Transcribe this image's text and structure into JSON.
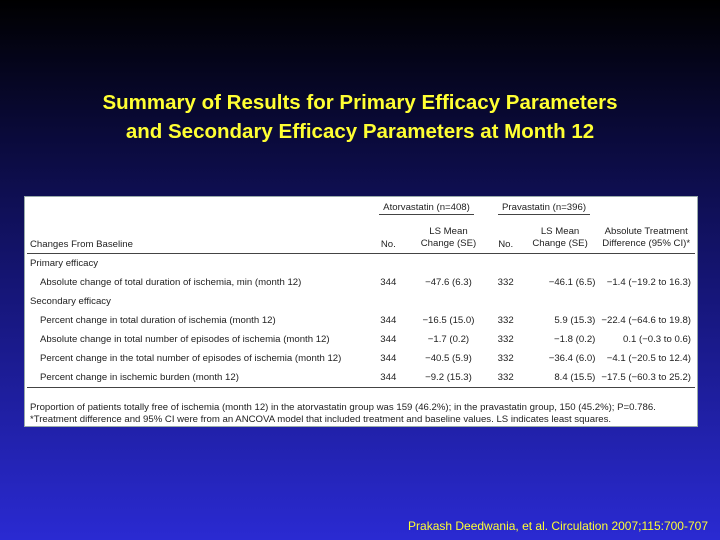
{
  "title": {
    "line1": "Summary of Results for Primary Efficacy Parameters",
    "line2": "and Secondary Efficacy Parameters at Month 12"
  },
  "table": {
    "group_headers": [
      "Atorvastatin (n=408)",
      "Pravastatin (n=396)"
    ],
    "columns": {
      "changes": "Changes From Baseline",
      "no1": "No.",
      "ls1_line1": "LS Mean",
      "ls1_line2": "Change (SE)",
      "no2": "No.",
      "ls2_line1": "LS Mean",
      "ls2_line2": "Change (SE)",
      "diff_line1": "Absolute Treatment",
      "diff_line2": "Difference (95% CI)*"
    },
    "primary_label": "Primary efficacy",
    "primary_rows": [
      {
        "label": "Absolute change of total duration of ischemia, min (month 12)",
        "n1": "344",
        "ls1": "−47.6 (6.3)",
        "n2": "332",
        "ls2": "−46.1 (6.5)",
        "diff": "−1.4 (−19.2 to 16.3)"
      }
    ],
    "secondary_label": "Secondary efficacy",
    "secondary_rows": [
      {
        "label": "Percent change in total duration of ischemia (month 12)",
        "n1": "344",
        "ls1": "−16.5 (15.0)",
        "n2": "332",
        "ls2": "5.9 (15.3)",
        "diff": "−22.4 (−64.6 to 19.8)"
      },
      {
        "label": "Absolute change in total number of episodes of ischemia (month 12)",
        "n1": "344",
        "ls1": "−1.7 (0.2)",
        "n2": "332",
        "ls2": "−1.8 (0.2)",
        "diff": "0.1 (−0.3 to 0.6)"
      },
      {
        "label": "Percent change in the total number of episodes of ischemia (month 12)",
        "n1": "344",
        "ls1": "−40.5 (5.9)",
        "n2": "332",
        "ls2": "−36.4 (6.0)",
        "diff": "−4.1 (−20.5 to 12.4)"
      },
      {
        "label": "Percent change in ischemic burden (month 12)",
        "n1": "344",
        "ls1": "−9.2 (15.3)",
        "n2": "332",
        "ls2": "8.4 (15.5)",
        "diff": "−17.5 (−60.3 to 25.2)"
      }
    ],
    "footnote1": "Proportion of patients totally free of ischemia (month 12) in the atorvastatin group was 159 (46.2%); in the pravastatin group, 150 (45.2%); P=0.786.",
    "footnote2": "*Treatment difference and 95% CI were from an ANCOVA model that included treatment and baseline values. LS indicates least squares."
  },
  "citation": "Prakash Deedwania, et al. Circulation 2007;115:700-707"
}
